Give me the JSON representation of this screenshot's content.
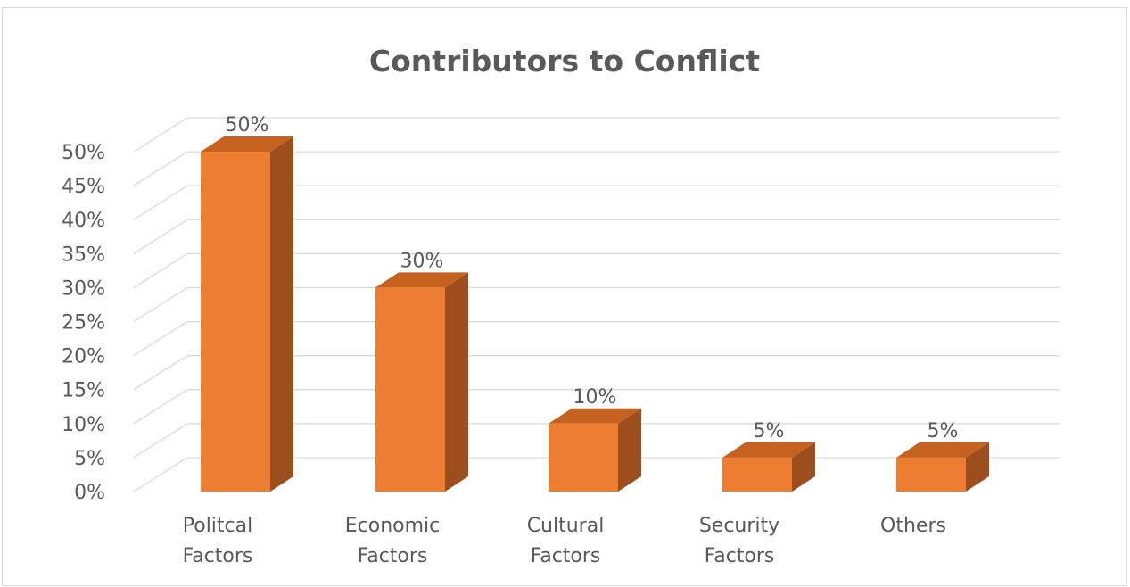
{
  "chart_data": {
    "type": "bar",
    "style": "3d-column",
    "title": "Contributors to Conflict",
    "categories": [
      [
        "Politcal",
        "Factors"
      ],
      [
        "Economic",
        "Factors"
      ],
      [
        "Cultural",
        "Factors"
      ],
      [
        "Security",
        "Factors"
      ],
      [
        "Others"
      ]
    ],
    "values": [
      50,
      30,
      10,
      5,
      5
    ],
    "data_labels": [
      "50%",
      "30%",
      "10%",
      "5%",
      "5%"
    ],
    "y_ticks": [
      "0%",
      "5%",
      "10%",
      "15%",
      "20%",
      "25%",
      "30%",
      "35%",
      "40%",
      "45%",
      "50%"
    ],
    "ylim": [
      0,
      50
    ],
    "grid": true,
    "legend": "none",
    "colors": {
      "front": "#ed7d31",
      "side": "#9c4f1c",
      "top": "#c5621f",
      "grid": "#d9d9d9",
      "text": "#595959"
    }
  }
}
